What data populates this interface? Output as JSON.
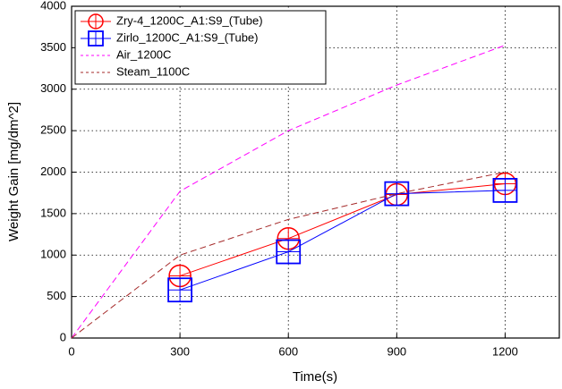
{
  "chart_data": {
    "type": "line",
    "x_label": "Time(s)",
    "y_label": "Weight Gain [mg/dm^2]",
    "xlim": [
      0,
      1350
    ],
    "xticks": [
      0,
      300,
      600,
      900,
      1200
    ],
    "ylim": [
      0,
      4000
    ],
    "yticks": [
      0,
      500,
      1000,
      1500,
      2000,
      2500,
      3000,
      3500,
      4000
    ],
    "grid": true,
    "legend": "upper left",
    "series": [
      {
        "name": "Zry-4_1200C_A1:S9_(Tube)",
        "color": "#ff0000",
        "marker": "circle",
        "dashed": false,
        "x": [
          300,
          600,
          900,
          1200
        ],
        "values": [
          750,
          1200,
          1730,
          1860
        ]
      },
      {
        "name": "Zirlo_1200C_A1:S9_(Tube)",
        "color": "#0000ff",
        "marker": "square",
        "dashed": false,
        "x": [
          300,
          600,
          900,
          1200
        ],
        "values": [
          580,
          1040,
          1740,
          1780
        ]
      },
      {
        "name": "Air_1200C",
        "color": "#ff00ff",
        "marker": "none",
        "dashed": true,
        "x": [
          0,
          300,
          600,
          900,
          1200
        ],
        "values": [
          0,
          1770,
          2500,
          3050,
          3530
        ]
      },
      {
        "name": "Steam_1100C",
        "color": "#a52a2a",
        "marker": "none",
        "dashed": true,
        "x": [
          0,
          300,
          600,
          900,
          1200
        ],
        "values": [
          0,
          1000,
          1430,
          1740,
          2000
        ]
      }
    ]
  }
}
